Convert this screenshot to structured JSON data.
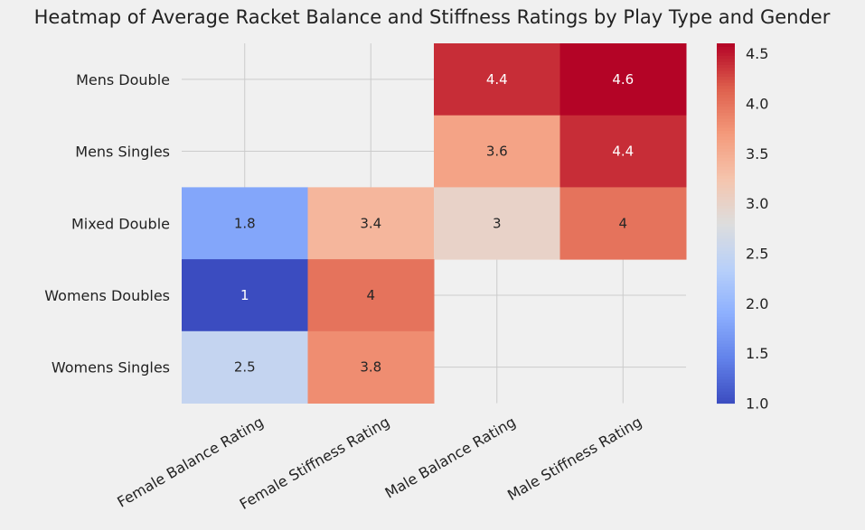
{
  "chart_data": {
    "type": "heatmap",
    "title": "Heatmap of Average Racket Balance and Stiffness Ratings by Play Type and Gender",
    "rows": [
      "Mens Double",
      "Mens Singles",
      "Mixed Double",
      "Womens Doubles",
      "Womens Singles"
    ],
    "columns": [
      "Female Balance Rating",
      "Female Stiffness Rating",
      "Male Balance Rating",
      "Male Stiffness Rating"
    ],
    "values": [
      [
        null,
        null,
        4.4,
        4.6
      ],
      [
        null,
        null,
        3.6,
        4.4
      ],
      [
        1.8,
        3.4,
        3.0,
        4.0
      ],
      [
        1.0,
        4.0,
        null,
        null
      ],
      [
        2.5,
        3.8,
        null,
        null
      ]
    ],
    "cell_labels": [
      [
        "",
        "",
        "4.4",
        "4.6"
      ],
      [
        "",
        "",
        "3.6",
        "4.4"
      ],
      [
        "1.8",
        "3.4",
        "3",
        "4"
      ],
      [
        "1",
        "4",
        "",
        ""
      ],
      [
        "2.5",
        "3.8",
        "",
        ""
      ]
    ],
    "colormap": "coolwarm",
    "vmin": 1.0,
    "vmax": 4.6,
    "colorbar_ticks": [
      "1.0",
      "1.5",
      "2.0",
      "2.5",
      "3.0",
      "3.5",
      "4.0",
      "4.5"
    ],
    "colorbar_tick_values": [
      1.0,
      1.5,
      2.0,
      2.5,
      3.0,
      3.5,
      4.0,
      4.5
    ],
    "grid": true,
    "background_color": "#f0f0f0"
  }
}
